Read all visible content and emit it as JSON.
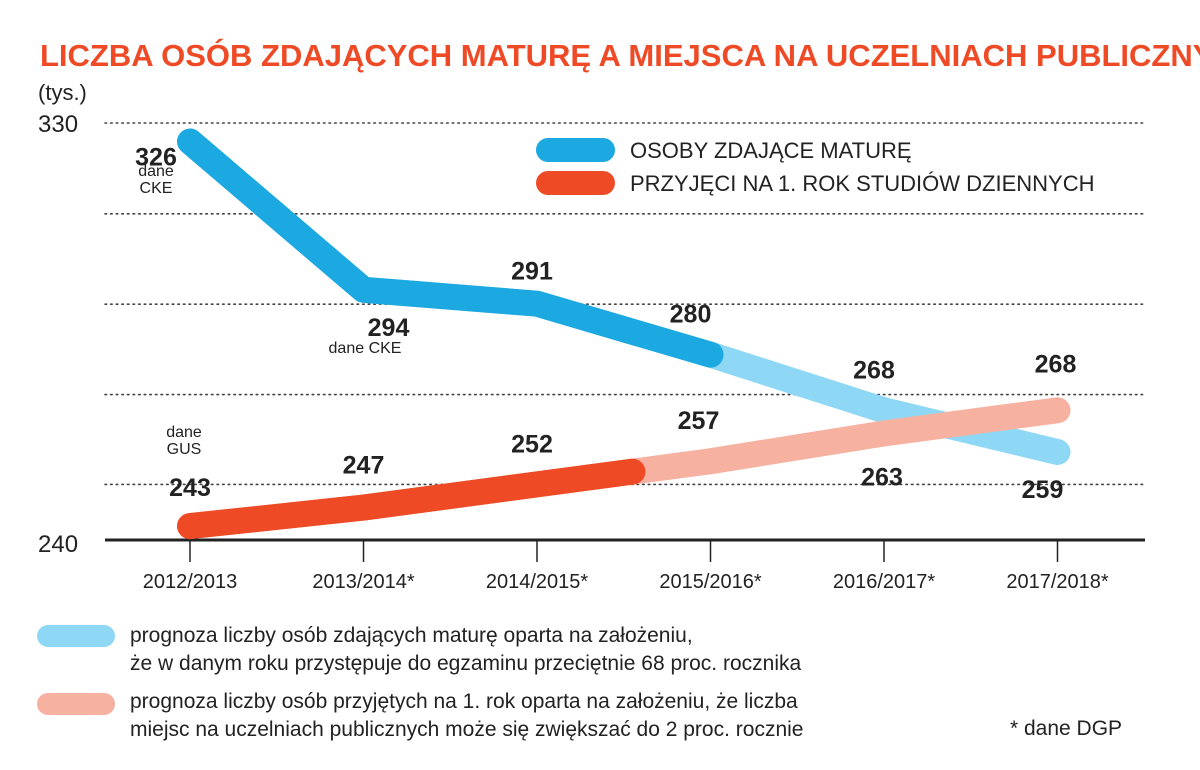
{
  "chart_data": {
    "type": "line",
    "title": "LICZBA OSÓB ZDAJĄCYCH MATURĘ A MIEJSCA NA UCZELNIACH PUBLICZNYCH",
    "ylabel": "(tys.)",
    "ylim": [
      240,
      330
    ],
    "ytick_labels": [
      "330",
      "240"
    ],
    "categories": [
      "2012/2013",
      "2013/2014*",
      "2014/2015*",
      "2015/2016*",
      "2016/2017*",
      "2017/2018*"
    ],
    "grid": "dotted horizontal",
    "legend_position": "top-right",
    "series": [
      {
        "name": "OSOBY ZDAJĄCE MATURĘ",
        "values": [
          326,
          294,
          291,
          280,
          268,
          259
        ],
        "labels": [
          "326",
          "294",
          "291",
          "280",
          "268",
          "259"
        ],
        "color": "#1ca8e0",
        "forecast_color": "#8fd8f5",
        "actual_points": 3
      },
      {
        "name": "PRZYJĘCI NA 1. ROK STUDIÓW DZIENNYCH",
        "values": [
          243,
          247,
          252,
          257,
          263,
          268
        ],
        "labels": [
          "243",
          "247",
          "252",
          "257",
          "263",
          "268"
        ],
        "color": "#ef4a26",
        "forecast_color": "#f6b1a0",
        "actual_points": 2.55
      }
    ],
    "annotations": [
      {
        "text": "dane\nCKE",
        "near": "326"
      },
      {
        "text": "dane CKE",
        "near": "294"
      },
      {
        "text": "dane\nGUS",
        "near": "243"
      }
    ]
  },
  "footnotes": {
    "blue_note_line1": "prognoza liczby osób zdających maturę oparta na założeniu,",
    "blue_note_line2": "że w danym roku przystępuje do egzaminu przeciętnie 68 proc. rocznika",
    "red_note_line1": "prognoza liczby osób przyjętych na 1. rok oparta na założeniu, że liczba",
    "red_note_line2": "miejsc na uczelniach publicznych może się zwiększać do 2 proc. rocznie",
    "source": "* dane DGP"
  }
}
